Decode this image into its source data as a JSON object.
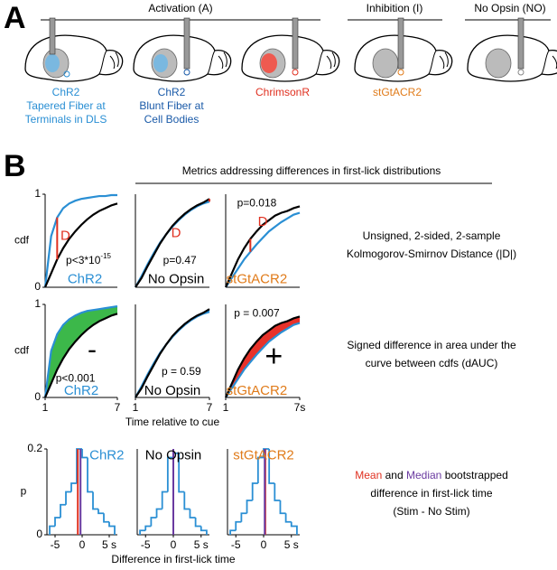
{
  "panel_a": {
    "letter": "A",
    "groups": [
      "Activation (A)",
      "Inhibition (I)",
      "No Opsin (NO)"
    ],
    "labels": [
      [
        "ChR2",
        "Tapered Fiber at",
        "Terminals in DLS"
      ],
      [
        "ChR2",
        "Blunt Fiber at",
        "Cell Bodies"
      ],
      [
        "ChrimsonR"
      ],
      [
        "stGtACR2"
      ]
    ]
  },
  "panel_b": {
    "letter": "B",
    "title": "Metrics addressing differences in first-lick distributions",
    "metric_1": [
      "Unsigned, 2-sided, 2-sample",
      "Kolmogorov-Smirnov Distance (|D|)"
    ],
    "metric_2": [
      "Signed difference in area under the",
      "curve between cdfs (dAUC)"
    ],
    "metric_3": {
      "mean": "Mean",
      "and": "and",
      "median": "Median",
      "rest": "bootstrapped",
      "lines": [
        "difference in first-lick time",
        "(Stim - No Stim)"
      ]
    }
  },
  "chart_data": [
    {
      "type": "line",
      "xlim": [
        1,
        7
      ],
      "ylim": [
        0,
        1
      ],
      "yticks": [
        0,
        1
      ],
      "ylabel": "cdf",
      "ks_line_color": "#e03020",
      "x": [
        1,
        1.5,
        2,
        2.5,
        3,
        3.5,
        4,
        4.5,
        5,
        5.5,
        6,
        6.5,
        7
      ],
      "series": [
        {
          "color": "#2a8fd4",
          "values": [
            0,
            0.55,
            0.75,
            0.85,
            0.9,
            0.93,
            0.95,
            0.96,
            0.97,
            0.98,
            0.98,
            0.99,
            0.99
          ]
        },
        {
          "color": "#000000",
          "values": [
            0,
            0.15,
            0.3,
            0.42,
            0.52,
            0.6,
            0.67,
            0.73,
            0.78,
            0.82,
            0.85,
            0.88,
            0.9
          ]
        }
      ],
      "annotations": [
        {
          "text": "D",
          "color": "#e03020"
        },
        {
          "text": "p<3*10",
          "sup": "-15"
        }
      ],
      "label": "ChR2",
      "label_color": "#2a8fd4"
    },
    {
      "type": "line",
      "xlim": [
        1,
        7
      ],
      "ylim": [
        0,
        1
      ],
      "ks_line_color": "#e03020",
      "x": [
        1,
        1.5,
        2,
        2.5,
        3,
        3.5,
        4,
        4.5,
        5,
        5.5,
        6,
        6.5,
        7
      ],
      "series": [
        {
          "color": "#2a8fd4",
          "values": [
            0,
            0.12,
            0.25,
            0.37,
            0.48,
            0.57,
            0.65,
            0.72,
            0.78,
            0.83,
            0.87,
            0.9,
            0.92
          ]
        },
        {
          "color": "#000000",
          "values": [
            0,
            0.1,
            0.23,
            0.35,
            0.47,
            0.57,
            0.66,
            0.73,
            0.79,
            0.84,
            0.88,
            0.91,
            0.95
          ]
        }
      ],
      "annotations": [
        {
          "text": "D",
          "color": "#e03020"
        },
        {
          "text": "p=0.47"
        }
      ],
      "label": "No Opsin",
      "label_color": "#000000"
    },
    {
      "type": "line",
      "xlim": [
        1,
        7
      ],
      "ylim": [
        0,
        1
      ],
      "ks_line_color": "#e03020",
      "x": [
        1,
        1.5,
        2,
        2.5,
        3,
        3.5,
        4,
        4.5,
        5,
        5.5,
        6,
        6.5,
        7
      ],
      "series": [
        {
          "color": "#2a8fd4",
          "values": [
            0,
            0.1,
            0.2,
            0.3,
            0.38,
            0.46,
            0.53,
            0.6,
            0.65,
            0.7,
            0.74,
            0.78,
            0.8
          ]
        },
        {
          "color": "#000000",
          "values": [
            0,
            0.15,
            0.3,
            0.42,
            0.52,
            0.6,
            0.67,
            0.72,
            0.77,
            0.8,
            0.82,
            0.85,
            0.87
          ]
        }
      ],
      "annotations": [
        {
          "text": "p=0.018"
        },
        {
          "text": "D",
          "color": "#e03020"
        }
      ],
      "label": "stGtACR2",
      "label_color": "#e07b1a"
    },
    {
      "type": "area",
      "xlim": [
        1,
        7
      ],
      "ylim": [
        0,
        1
      ],
      "yticks": [
        0,
        1
      ],
      "xticks": [
        1,
        7
      ],
      "ylabel": "cdf",
      "fill_color": "#3cb84a",
      "x": [
        1,
        1.5,
        2,
        2.5,
        3,
        3.5,
        4,
        4.5,
        5,
        5.5,
        6,
        6.5,
        7
      ],
      "series": [
        {
          "color": "#2a8fd4",
          "values": [
            0,
            0.5,
            0.68,
            0.78,
            0.84,
            0.88,
            0.91,
            0.93,
            0.94,
            0.95,
            0.96,
            0.97,
            0.98
          ]
        },
        {
          "color": "#000000",
          "values": [
            0,
            0.15,
            0.3,
            0.42,
            0.52,
            0.6,
            0.67,
            0.73,
            0.78,
            0.82,
            0.85,
            0.88,
            0.9
          ]
        }
      ],
      "annotations": [
        {
          "text": "-"
        },
        {
          "text": "p<0.001"
        }
      ],
      "label": "ChR2",
      "label_color": "#2a8fd4"
    },
    {
      "type": "area",
      "xlim": [
        1,
        7
      ],
      "ylim": [
        0,
        1
      ],
      "xticks": [
        1,
        7
      ],
      "xlabel": "Time relative to cue",
      "fill_color": "#2a8fd4",
      "x": [
        1,
        1.5,
        2,
        2.5,
        3,
        3.5,
        4,
        4.5,
        5,
        5.5,
        6,
        6.5,
        7
      ],
      "series": [
        {
          "color": "#2a8fd4",
          "values": [
            0,
            0.12,
            0.25,
            0.37,
            0.48,
            0.57,
            0.65,
            0.72,
            0.78,
            0.83,
            0.87,
            0.9,
            0.92
          ]
        },
        {
          "color": "#000000",
          "values": [
            0,
            0.1,
            0.23,
            0.35,
            0.47,
            0.57,
            0.66,
            0.73,
            0.79,
            0.84,
            0.88,
            0.91,
            0.95
          ]
        }
      ],
      "annotations": [
        {
          "text": "p = 0.59"
        }
      ],
      "label": "No Opsin",
      "label_color": "#000000"
    },
    {
      "type": "area",
      "xlim": [
        1,
        7
      ],
      "ylim": [
        0,
        1
      ],
      "xticks": [
        1,
        {
          "value": 7,
          "label": "7s"
        }
      ],
      "fill_color": "#e8322a",
      "x": [
        1,
        1.5,
        2,
        2.5,
        3,
        3.5,
        4,
        4.5,
        5,
        5.5,
        6,
        6.5,
        7
      ],
      "series": [
        {
          "color": "#2a8fd4",
          "values": [
            0,
            0.1,
            0.2,
            0.3,
            0.38,
            0.46,
            0.53,
            0.6,
            0.65,
            0.7,
            0.74,
            0.78,
            0.8
          ]
        },
        {
          "color": "#000000",
          "values": [
            0,
            0.15,
            0.3,
            0.42,
            0.52,
            0.6,
            0.67,
            0.72,
            0.77,
            0.8,
            0.82,
            0.85,
            0.87
          ]
        }
      ],
      "annotations": [
        {
          "text": "p = 0.007"
        },
        {
          "text": "+"
        }
      ],
      "label": "stGtACR2",
      "label_color": "#e07b1a"
    },
    {
      "type": "histogram",
      "xlim": [
        -6.5,
        6.5
      ],
      "ylim": [
        0,
        0.2
      ],
      "yticks": [
        0,
        0.2
      ],
      "xticks": [
        -5,
        0,
        {
          "value": 5,
          "label": "5 s"
        }
      ],
      "ylabel": "p",
      "color": "#2a8fd4",
      "bins": [
        -6,
        -5,
        -4,
        -3,
        -2,
        -1,
        0,
        1,
        2,
        3,
        4,
        5,
        6
      ],
      "values": [
        0.02,
        0.04,
        0.07,
        0.1,
        0.12,
        0.2,
        0.18,
        0.1,
        0.06,
        0.05,
        0.03,
        0.02
      ],
      "mean": -0.8,
      "mean_color": "#e03020",
      "median": -0.3,
      "median_color": "#6a3aa0",
      "label": "ChR2",
      "label_color": "#2a8fd4"
    },
    {
      "type": "histogram",
      "xlim": [
        -6.5,
        6.5
      ],
      "ylim": [
        0,
        0.2
      ],
      "xticks": [
        -5,
        0,
        {
          "value": 5,
          "label": "5 s"
        }
      ],
      "xlabel": "Difference in first-lick time",
      "color": "#2a8fd4",
      "bins": [
        -6,
        -5,
        -4,
        -3,
        -2,
        -1,
        0,
        1,
        2,
        3,
        4,
        5,
        6
      ],
      "values": [
        0.01,
        0.02,
        0.04,
        0.06,
        0.1,
        0.18,
        0.19,
        0.1,
        0.06,
        0.04,
        0.02,
        0.01
      ],
      "mean": 0,
      "mean_color": "#e03020",
      "median": 0,
      "median_color": "#6a3aa0",
      "label": "No Opsin",
      "label_color": "#000000"
    },
    {
      "type": "histogram",
      "xlim": [
        -6.5,
        6.5
      ],
      "ylim": [
        0,
        0.2
      ],
      "xticks": [
        -5,
        0,
        {
          "value": 5,
          "label": "5 s"
        }
      ],
      "color": "#2a8fd4",
      "bins": [
        -6,
        -5,
        -4,
        -3,
        -2,
        -1,
        0,
        1,
        2,
        3,
        4,
        5,
        6
      ],
      "values": [
        0.01,
        0.03,
        0.05,
        0.08,
        0.12,
        0.18,
        0.2,
        0.12,
        0.08,
        0.05,
        0.03,
        0.02
      ],
      "mean": 0.3,
      "mean_color": "#e03020",
      "median": 0.2,
      "median_color": "#6a3aa0",
      "label": "stGtACR2",
      "label_color": "#e07b1a"
    }
  ]
}
